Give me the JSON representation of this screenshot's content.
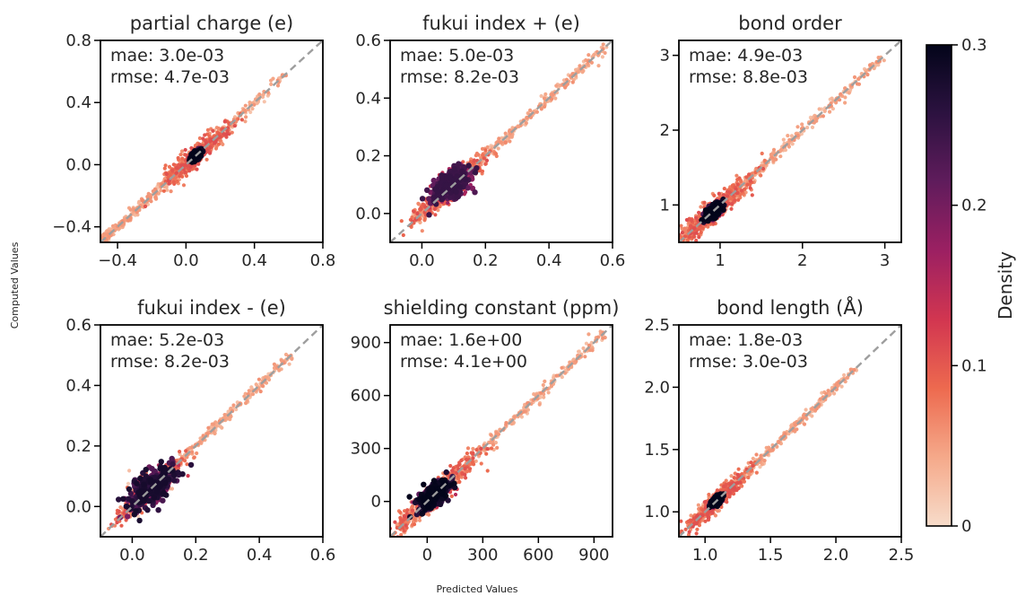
{
  "figure": {
    "xlabel": "Predicted Values",
    "ylabel": "Computed Values"
  },
  "colorbar": {
    "label": "Density",
    "min": 0,
    "max": 0.3,
    "ticks": [
      "0.3",
      "0.2",
      "0.1",
      "0"
    ],
    "colors_low_to_high": [
      "#f7dcca",
      "#f5a98a",
      "#ed6a4f",
      "#d23650",
      "#9c2062",
      "#601c5c",
      "#2c1240",
      "#03051a"
    ]
  },
  "chart_data": [
    {
      "type": "scatter",
      "title": "partial charge  (e)",
      "mae": "mae: 3.0e-03",
      "rmse": "rmse: 4.7e-03",
      "xlim": [
        -0.5,
        0.8
      ],
      "ylim": [
        -0.5,
        0.8
      ],
      "xticks": [
        -0.4,
        0.0,
        0.4,
        0.8
      ],
      "yticks": [
        -0.4,
        0.0,
        0.4,
        0.8
      ],
      "xtick_labels": [
        "−0.4",
        "0.0",
        "0.4",
        "0.8"
      ],
      "ytick_labels": [
        "−0.4",
        "0.0",
        "0.4",
        "0.8"
      ],
      "density_center": [
        0.06,
        0.06
      ],
      "data_range": [
        -0.48,
        0.58
      ],
      "spread": 0.015,
      "peak_density": 0.3
    },
    {
      "type": "scatter",
      "title": "fukui index + (e)",
      "mae": "mae: 5.0e-03",
      "rmse": "rmse: 8.2e-03",
      "xlim": [
        -0.1,
        0.6
      ],
      "ylim": [
        -0.1,
        0.6
      ],
      "xticks": [
        0.0,
        0.2,
        0.4,
        0.6
      ],
      "yticks": [
        0.0,
        0.2,
        0.4,
        0.6
      ],
      "xtick_labels": [
        "0.0",
        "0.2",
        "0.4",
        "0.6"
      ],
      "ytick_labels": [
        "0.0",
        "0.2",
        "0.4",
        "0.6"
      ],
      "density_center": [
        0.09,
        0.1
      ],
      "data_range": [
        -0.02,
        0.58
      ],
      "spread": 0.03,
      "peak_density": 0.25
    },
    {
      "type": "scatter",
      "title": "bond order",
      "mae": "mae: 4.9e-03",
      "rmse": "rmse: 8.8e-03",
      "xlim": [
        0.5,
        3.2
      ],
      "ylim": [
        0.5,
        3.2
      ],
      "xticks": [
        1,
        2,
        3
      ],
      "yticks": [
        1,
        2,
        3
      ],
      "xtick_labels": [
        "1",
        "2",
        "3"
      ],
      "ytick_labels": [
        "1",
        "2",
        "3"
      ],
      "density_center": [
        0.92,
        0.92
      ],
      "data_range": [
        0.55,
        3.0
      ],
      "spread": 0.05,
      "peak_density": 0.3
    },
    {
      "type": "scatter",
      "title": "fukui index - (e)",
      "mae": "mae: 5.2e-03",
      "rmse": "rmse: 8.2e-03",
      "xlim": [
        -0.1,
        0.6
      ],
      "ylim": [
        -0.1,
        0.6
      ],
      "xticks": [
        0.0,
        0.2,
        0.4,
        0.6
      ],
      "yticks": [
        0.0,
        0.2,
        0.4,
        0.6
      ],
      "xtick_labels": [
        "0.0",
        "0.2",
        "0.4",
        "0.6"
      ],
      "ytick_labels": [
        "0.0",
        "0.2",
        "0.4",
        "0.6"
      ],
      "density_center": [
        0.06,
        0.06
      ],
      "data_range": [
        -0.01,
        0.5
      ],
      "spread": 0.035,
      "peak_density": 0.28
    },
    {
      "type": "scatter",
      "title": "shielding constant (ppm)",
      "mae": "mae: 1.6e+00",
      "rmse": "rmse: 4.1e+00",
      "xlim": [
        -200,
        1000
      ],
      "ylim": [
        -200,
        1000
      ],
      "xticks": [
        0,
        300,
        600,
        900
      ],
      "yticks": [
        0,
        300,
        600,
        900
      ],
      "xtick_labels": [
        "0",
        "300",
        "600",
        "900"
      ],
      "ytick_labels": [
        "0",
        "300",
        "600",
        "900"
      ],
      "density_center": [
        40,
        40
      ],
      "data_range": [
        -150,
        960
      ],
      "spread": 40,
      "peak_density": 0.3
    },
    {
      "type": "scatter",
      "title": "bond length (Å)",
      "mae": "mae: 1.8e-03",
      "rmse": "rmse: 3.0e-03",
      "xlim": [
        0.8,
        2.5
      ],
      "ylim": [
        0.8,
        2.5
      ],
      "xticks": [
        1.0,
        1.5,
        2.0,
        2.5
      ],
      "yticks": [
        1.0,
        1.5,
        2.0,
        2.5
      ],
      "xtick_labels": [
        "1.0",
        "1.5",
        "2.0",
        "2.5"
      ],
      "ytick_labels": [
        "1.0",
        "1.5",
        "2.0",
        "2.5"
      ],
      "density_center": [
        1.09,
        1.09
      ],
      "data_range": [
        0.95,
        2.15
      ],
      "spread": 0.02,
      "peak_density": 0.3
    }
  ]
}
